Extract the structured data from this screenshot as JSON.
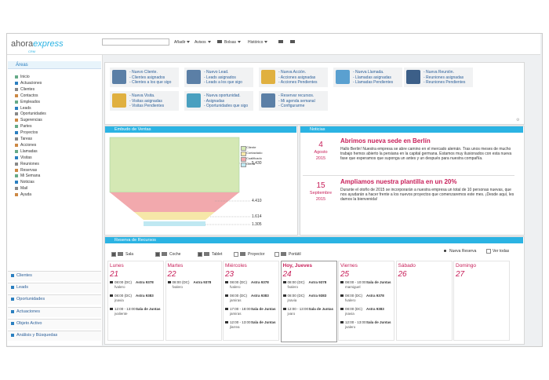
{
  "header": {
    "logo": "ahora",
    "logo_suffix": "express",
    "logo_sub": "CRM",
    "menu": [
      "Añadir",
      "Avisos",
      "Bolsas",
      "Histórico"
    ]
  },
  "sidebar": {
    "title": "Áreas",
    "items": [
      "Inicio",
      "Actuaciones",
      "Clientes",
      "Contactos",
      "Empleados",
      "Leads",
      "Oportunidades",
      "Sugerencias",
      "Partes",
      "Proyectos",
      "Tareas",
      "Acciones",
      "Llamadas",
      "Visitas",
      "Reuniones",
      "Reservas",
      "Mi Semana",
      "Noticias",
      "Mail",
      "Ayuda"
    ],
    "sections": [
      "Clientes",
      "Leads",
      "Oportunidades",
      "Actuaciones",
      "Objeto Activo",
      "Análisis y Búsquedas"
    ]
  },
  "shortcuts": [
    {
      "lines": [
        "- Nuevo Cliente.",
        "- Clientes asignados",
        "- Clientes a los que sigo"
      ]
    },
    {
      "lines": [
        "- Nuevo Lead.",
        "- Leads asignados",
        "- Leads a los que sigo"
      ]
    },
    {
      "lines": [
        "- Nueva Acción.",
        "- Acciones asignadas",
        "- Acciones Pendientes"
      ]
    },
    {
      "lines": [
        "- Nueva Llamada.",
        "- Llamadas asignadas",
        "- Llamadas Pendientes"
      ]
    },
    {
      "lines": [
        "- Nueva Reunión.",
        "- Reuniones asignadas",
        "- Reuniones Pendientes"
      ]
    },
    {
      "lines": [
        "- Nueva Visita.",
        "- Visitas asignadas",
        "- Visitas Pendientes"
      ]
    },
    {
      "lines": [
        "- Nueva oportunidad.",
        "- Asignadas",
        "- Oportunidades que sigo"
      ]
    },
    {
      "lines": [
        "- Reservar recursos.",
        "- Mi agenda semanal",
        "- Configurarme"
      ]
    }
  ],
  "funnel": {
    "title": "Embudo de Ventas",
    "labels": [
      "5.430",
      "4.410",
      "1.614",
      "1.305"
    ],
    "legend": [
      "Cliente",
      "Contactado",
      "Cualificado",
      "Oferta"
    ]
  },
  "news": {
    "title": "Noticias",
    "items": [
      {
        "day": "4",
        "month": "Agosto",
        "year": "2015",
        "title": "Abrimos nueva sede en Berlín",
        "body": "Hallo Berlin! Nuestra empresa se abre camino en el mercado alemán. Tras unos meses de mucho trabajo hemos abierto la persiana en la capital germana. Estamos muy ilusionados con esta nueva fase que esperamos que suponga un antes y un después para nuestra compañía."
      },
      {
        "day": "15",
        "month": "Septiembre",
        "year": "2015",
        "title": "Ampliamos nuestra plantilla en un 20%",
        "body": "Durante el otoño de 2015 se incorporarán a nuestra empresa un total de 10 personas nuevas, que nos ayudarán a hacer frente a los nuevos proyectos que comenzaremos este mes. ¡Desde aquí, les damos la bienvenida!"
      }
    ]
  },
  "resources": {
    "title": "Reserva de Recursos",
    "filters": [
      "Sala",
      "Coche",
      "Tablet",
      "Proyector",
      "Portátil"
    ],
    "new": "Nueva Reserva",
    "all": "Ver todas",
    "days": [
      {
        "name": "Lunes",
        "date": "21",
        "events": [
          {
            "time": "08:00 (DC)",
            "resource": "Astra 9378",
            "user": "fvalero"
          },
          {
            "time": "08:00 (DC)",
            "resource": "Astra 9383",
            "user": "jnavia"
          },
          {
            "time": "12:00 - 13:00",
            "resource": "Sala de Juntas",
            "user": "jvaliente"
          }
        ]
      },
      {
        "name": "Martes",
        "date": "22",
        "events": [
          {
            "time": "08:00 (DC)",
            "resource": "Astra 9378",
            "user": "fvalero"
          }
        ]
      },
      {
        "name": "Miércoles",
        "date": "23",
        "events": [
          {
            "time": "08:00 (DC)",
            "resource": "Astra 9378",
            "user": "fvalero"
          },
          {
            "time": "08:00 (DC)",
            "resource": "Astra 9383",
            "user": "jamiras"
          },
          {
            "time": "17:00 - 18:00",
            "resource": "Sala de Juntas",
            "user": "jamiras"
          },
          {
            "time": "12:00 - 13:00",
            "resource": "Sala de Juntas",
            "user": "jlarrea"
          }
        ]
      },
      {
        "name": "Hoy, Jueves",
        "date": "24",
        "events": [
          {
            "time": "08:00 (DC)",
            "resource": "Astra 9378",
            "user": "fvalero"
          },
          {
            "time": "08:00 (DC)",
            "resource": "Astra 9383",
            "user": "jnavia"
          },
          {
            "time": "12:00 - 13:00",
            "resource": "Sala de Juntas",
            "user": "jvaro"
          }
        ]
      },
      {
        "name": "Viernes",
        "date": "25",
        "events": [
          {
            "time": "08:00 - 10:00",
            "resource": "Sala de Juntas",
            "user": "mamiguel"
          },
          {
            "time": "08:00 (DC)",
            "resource": "Astra 9378",
            "user": "fvalero"
          },
          {
            "time": "08:00 (DC)",
            "resource": "Astra 9383",
            "user": "jnavia"
          },
          {
            "time": "12:00 - 13:00",
            "resource": "Sala de Juntas",
            "user": "jvalero"
          }
        ]
      },
      {
        "name": "Sábado",
        "date": "26",
        "events": []
      },
      {
        "name": "Domingo",
        "date": "27",
        "events": []
      }
    ]
  }
}
